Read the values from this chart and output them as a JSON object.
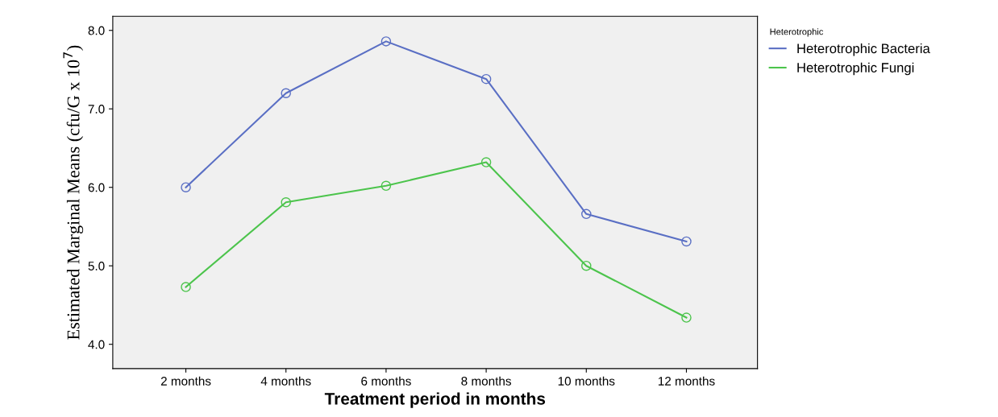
{
  "chart_data": {
    "type": "line",
    "xlabel": "Treatment period in months",
    "ylabel": "Estimated Marginal Means (cfu/G x 10$^{7}$)",
    "legend_title": "Heterotrophic",
    "categories": [
      "2 months",
      "4 months",
      "6 months",
      "8 months",
      "10 months",
      "12 months"
    ],
    "series": [
      {
        "name": "Heterotrophic Bacteria",
        "color": "#5a6fc4",
        "values": [
          6.0,
          7.2,
          7.86,
          7.38,
          5.66,
          5.31
        ]
      },
      {
        "name": "Heterotrophic Fungi",
        "color": "#4cc44c",
        "values": [
          4.73,
          5.81,
          6.02,
          6.32,
          5.0,
          4.34
        ]
      }
    ],
    "ylim": [
      3.69,
      8.18
    ],
    "yticks": [
      {
        "value": 4,
        "label": "4.0"
      },
      {
        "value": 5,
        "label": "5.0"
      },
      {
        "value": 6,
        "label": "6.0"
      },
      {
        "value": 7,
        "label": "7.0"
      },
      {
        "value": 8,
        "label": "8.0"
      }
    ],
    "grid": false,
    "legend": "top right",
    "marker": "circle",
    "line_style": "solid"
  }
}
